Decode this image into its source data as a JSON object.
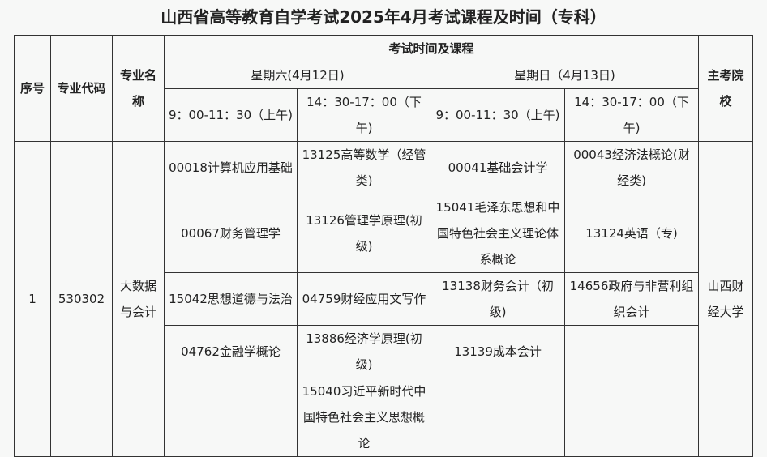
{
  "title": "山西省高等教育自学考试2025年4月考试课程及时间（专科）",
  "headers": {
    "seq": "序号",
    "major_code": "专业代码",
    "major_name": "专业名称",
    "exam_time_courses": "考试时间及课程",
    "saturday": "星期六(4月12日)",
    "sunday": "星期日（4月13日)",
    "morning": "9：00-11：30（上午)",
    "afternoon": "14：30-17：00（下午)",
    "school": "主考院校"
  },
  "row": {
    "seq": "1",
    "major_code": "530302",
    "major_name": "大数据与会计",
    "school": "山西财经大学",
    "courses": [
      [
        "00018计算机应用基础",
        "13125高等数学（经管类)",
        "00041基础会计学",
        "00043经济法概论(财经类)"
      ],
      [
        "00067财务管理学",
        "13126管理学原理(初级)",
        "15041毛泽东思想和中国特色社会主义理论体系概论",
        "13124英语（专)"
      ],
      [
        "15042思想道德与法治",
        "04759财经应用文写作",
        "13138财务会计（初级)",
        "14656政府与非营利组织会计"
      ],
      [
        "04762金融学概论",
        "13886经济学原理(初级)",
        "13139成本会计",
        ""
      ],
      [
        "",
        "15040习近平新时代中国特色社会主义思想概论",
        "",
        ""
      ]
    ]
  }
}
